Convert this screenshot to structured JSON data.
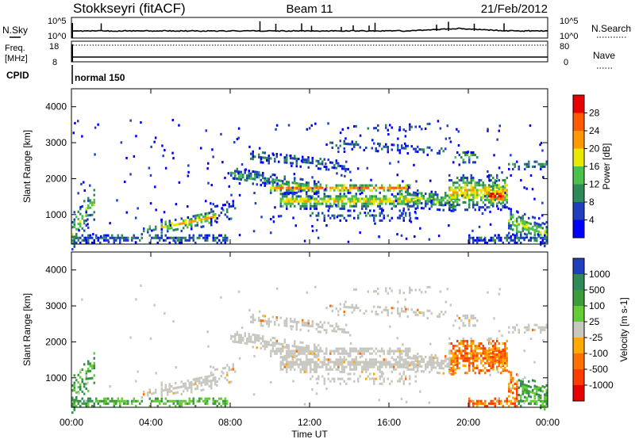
{
  "header": {
    "station": "Stokkseyri (fitACF)",
    "beam": "Beam 11",
    "date": "21/Feb/2012"
  },
  "noise_panel": {
    "left_label": "N.Sky",
    "right_label": "N.Search",
    "ticks_left": [
      "10^5",
      "10^0"
    ],
    "ticks_right": [
      "10^5",
      "10^0"
    ]
  },
  "freq_panel": {
    "left_label_1": "Freq.",
    "left_label_2": "[MHz]",
    "right_label": "Nave",
    "ticks_left": [
      "18",
      "8"
    ],
    "ticks_right": [
      "80",
      "0"
    ]
  },
  "cpid": {
    "label": "CPID",
    "mode": "normal 150"
  },
  "chart_data": [
    {
      "type": "heatmap",
      "name": "power",
      "ylabel": "Slant Range [km]",
      "xlabel": "Time UT",
      "xlim_hours": [
        0,
        24
      ],
      "ylim_km": [
        180,
        4500
      ],
      "yticks": [
        "1000",
        "2000",
        "3000",
        "4000"
      ],
      "colorbar": {
        "label": "Power [dB]",
        "ticks": [
          "4",
          "8",
          "12",
          "16",
          "20",
          "24",
          "28"
        ],
        "colors": [
          "#0000ff",
          "#1f3fbf",
          "#2e8b57",
          "#4cc14c",
          "#e8e800",
          "#ff9900",
          "#ff5a00",
          "#e60000"
        ]
      }
    },
    {
      "type": "heatmap",
      "name": "velocity",
      "ylabel": "Slant Range [km]",
      "xlabel": "Time UT",
      "xlim_hours": [
        0,
        24
      ],
      "ylim_km": [
        180,
        4500
      ],
      "yticks": [
        "1000",
        "2000",
        "3000",
        "4000"
      ],
      "colorbar": {
        "label": "Velocity [m s-1]",
        "ticks": [
          "1000",
          "500",
          "100",
          "25",
          "-25",
          "-100",
          "-500",
          "-1000"
        ],
        "colors": [
          "#1f3fbf",
          "#2e8b57",
          "#3c9c3c",
          "#66cc33",
          "#c8c8c0",
          "#ffaa00",
          "#ff7000",
          "#ff3c00",
          "#e60000"
        ]
      }
    }
  ],
  "x_axis": {
    "ticks": [
      "00:00",
      "04:00",
      "08:00",
      "12:00",
      "16:00",
      "20:00",
      "00:00"
    ],
    "label": "Time UT"
  }
}
